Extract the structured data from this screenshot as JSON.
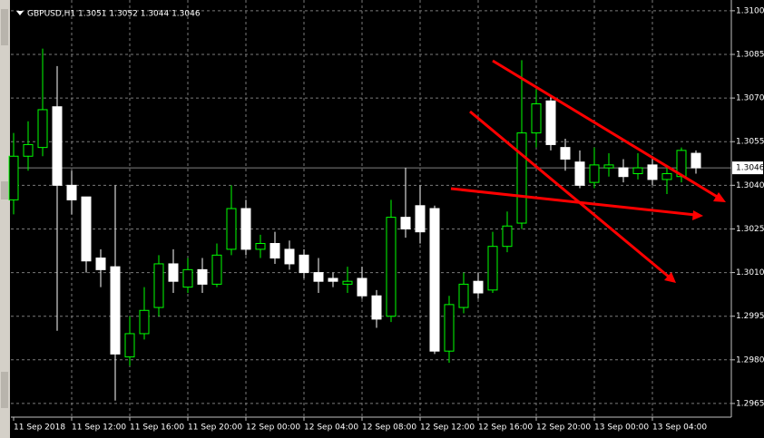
{
  "chart_data": {
    "type": "candlestick",
    "title": "GBPUSD,H1  1.3051 1.3052 1.3044 1.3046",
    "categories": [
      "11 Sep 2018",
      null,
      null,
      null,
      "11 Sep 12:00",
      null,
      null,
      null,
      "11 Sep 16:00",
      null,
      null,
      null,
      "11 Sep 20:00",
      null,
      null,
      null,
      "12 Sep 00:00",
      null,
      null,
      null,
      "12 Sep 04:00",
      null,
      null,
      null,
      "12 Sep 08:00",
      null,
      null,
      null,
      "12 Sep 12:00",
      null,
      null,
      null,
      "12 Sep 16:00",
      null,
      null,
      null,
      "12 Sep 20:00",
      null,
      null,
      null,
      "13 Sep 00:00",
      null,
      null,
      null,
      "13 Sep 04:00",
      null,
      null,
      null
    ],
    "open": [
      1.3035,
      1.305,
      1.3053,
      1.3067,
      1.304,
      1.3036,
      1.3015,
      1.3012,
      1.2981,
      1.2989,
      1.2998,
      1.3013,
      1.3005,
      1.3011,
      1.3006,
      1.3018,
      1.3032,
      1.3018,
      1.302,
      1.3018,
      1.3016,
      1.301,
      1.3008,
      1.3006,
      1.3008,
      1.3002,
      1.2995,
      1.3029,
      1.3033,
      1.3032,
      1.2983,
      1.2998,
      1.3007,
      1.3004,
      1.3019,
      1.3027,
      1.3058,
      1.3069,
      1.3053,
      1.3048,
      1.3041,
      1.3046,
      1.3046,
      1.3044,
      1.3047,
      1.3042,
      1.3043,
      1.3051
    ],
    "high": [
      1.3058,
      1.3062,
      1.3087,
      1.3081,
      1.3045,
      1.3036,
      1.3018,
      1.304,
      1.2995,
      1.3005,
      1.3016,
      1.3018,
      1.3015,
      1.3015,
      1.302,
      1.304,
      1.3035,
      1.3023,
      1.3024,
      1.3021,
      1.3018,
      1.3015,
      1.301,
      1.3012,
      1.3012,
      1.3004,
      1.3035,
      1.3046,
      1.304,
      1.3033,
      1.3002,
      1.301,
      1.301,
      1.3024,
      1.3031,
      1.3083,
      1.3073,
      1.3071,
      1.3056,
      1.3052,
      1.3053,
      1.3051,
      1.3049,
      1.3051,
      1.305,
      1.3047,
      1.3053,
      1.3052
    ],
    "low": [
      1.303,
      1.3045,
      1.305,
      1.299,
      1.303,
      1.301,
      1.3005,
      1.2966,
      1.2978,
      1.2987,
      1.2995,
      1.3003,
      1.3003,
      1.3003,
      1.3005,
      1.3016,
      1.3016,
      1.3015,
      1.3013,
      1.3011,
      1.3008,
      1.3003,
      1.3005,
      1.3003,
      1.3001,
      1.2991,
      1.2993,
      1.3022,
      1.302,
      1.2982,
      1.2979,
      1.2996,
      1.3001,
      1.3003,
      1.3017,
      1.3025,
      1.3053,
      1.3052,
      1.3045,
      1.3039,
      1.3039,
      1.3043,
      1.3041,
      1.3042,
      1.304,
      1.3037,
      1.3041,
      1.3044
    ],
    "close": [
      1.305,
      1.3054,
      1.3066,
      1.304,
      1.3035,
      1.3014,
      1.3011,
      1.2982,
      1.2989,
      1.2997,
      1.3013,
      1.3007,
      1.3011,
      1.3006,
      1.3016,
      1.3032,
      1.3018,
      1.302,
      1.3015,
      1.3013,
      1.301,
      1.3007,
      1.3007,
      1.3007,
      1.3002,
      1.2994,
      1.3029,
      1.3025,
      1.3024,
      1.2983,
      1.2999,
      1.3006,
      1.3003,
      1.3019,
      1.3026,
      1.3058,
      1.3068,
      1.3054,
      1.3049,
      1.304,
      1.3047,
      1.3047,
      1.3043,
      1.3046,
      1.3042,
      1.3044,
      1.3052,
      1.3046
    ],
    "up_color": "#00ff00",
    "down_color": "#ffffff",
    "last_price": 1.3046,
    "ylim": [
      1.29603,
      1.31037
    ],
    "yticks": [
      1.2965,
      {
        "value": 1.298,
        "label": "1.2980"
      },
      1.2995,
      {
        "value": 1.301,
        "label": "1.3010"
      },
      1.3025,
      {
        "value": 1.304,
        "label": "1.3040"
      },
      1.3055,
      {
        "value": 1.307,
        "label": "1.3070"
      },
      1.3085,
      {
        "value": 1.31,
        "label": "1.3100"
      }
    ],
    "grid": true
  }
}
